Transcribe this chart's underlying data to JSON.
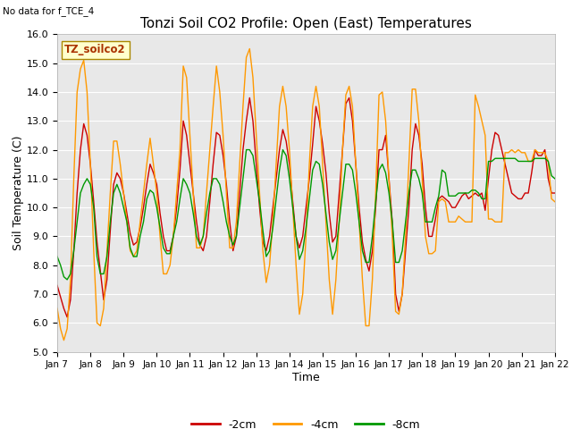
{
  "title": "Tonzi Soil CO2 Profile: Open (East) Temperatures",
  "xlabel": "Time",
  "ylabel": "Soil Temperature (C)",
  "note": "No data for f_TCE_4",
  "legend_label": "TZ_soilco2",
  "ylim": [
    5.0,
    16.0
  ],
  "yticks": [
    5.0,
    6.0,
    7.0,
    8.0,
    9.0,
    10.0,
    11.0,
    12.0,
    13.0,
    14.0,
    15.0,
    16.0
  ],
  "line_colors": {
    "2cm": "#cc0000",
    "4cm": "#ff9900",
    "8cm": "#009900"
  },
  "bg_color": "#e8e8e8",
  "x_tick_labels": [
    "Jan 7",
    "Jan 8",
    "Jan 9",
    "Jan 10",
    "Jan 11",
    "Jan 12",
    "Jan 13",
    "Jan 14",
    "Jan 15",
    "Jan 16",
    "Jan 17",
    "Jan 18",
    "Jan 19",
    "Jan 20",
    "Jan 21",
    "Jan 22"
  ],
  "data_x": [
    7.0,
    7.1,
    7.2,
    7.3,
    7.4,
    7.5,
    7.6,
    7.7,
    7.8,
    7.9,
    8.0,
    8.1,
    8.2,
    8.3,
    8.4,
    8.5,
    8.6,
    8.7,
    8.8,
    8.9,
    9.0,
    9.1,
    9.2,
    9.3,
    9.4,
    9.5,
    9.6,
    9.7,
    9.8,
    9.9,
    10.0,
    10.1,
    10.2,
    10.3,
    10.4,
    10.5,
    10.6,
    10.7,
    10.8,
    10.9,
    11.0,
    11.1,
    11.2,
    11.3,
    11.4,
    11.5,
    11.6,
    11.7,
    11.8,
    11.9,
    12.0,
    12.1,
    12.2,
    12.3,
    12.4,
    12.5,
    12.6,
    12.7,
    12.8,
    12.9,
    13.0,
    13.1,
    13.2,
    13.3,
    13.4,
    13.5,
    13.6,
    13.7,
    13.8,
    13.9,
    14.0,
    14.1,
    14.2,
    14.3,
    14.4,
    14.5,
    14.6,
    14.7,
    14.8,
    14.9,
    15.0,
    15.1,
    15.2,
    15.3,
    15.4,
    15.5,
    15.6,
    15.7,
    15.8,
    15.9,
    16.0,
    16.1,
    16.2,
    16.3,
    16.4,
    16.5,
    16.6,
    16.7,
    16.8,
    16.9,
    17.0,
    17.1,
    17.2,
    17.3,
    17.4,
    17.5,
    17.6,
    17.7,
    17.8,
    17.9,
    18.0,
    18.1,
    18.2,
    18.3,
    18.4,
    18.5,
    18.6,
    18.7,
    18.8,
    18.9,
    19.0,
    19.1,
    19.2,
    19.3,
    19.4,
    19.5,
    19.6,
    19.7,
    19.8,
    19.9,
    20.0,
    20.1,
    20.2,
    20.3,
    20.4,
    20.5,
    20.6,
    20.7,
    20.8,
    20.9,
    21.0,
    21.1,
    21.2,
    21.3,
    21.4,
    21.5,
    21.6,
    21.7,
    21.8,
    21.9,
    22.0
  ],
  "data_2cm": [
    7.3,
    6.9,
    6.5,
    6.2,
    6.8,
    8.5,
    10.5,
    12.0,
    12.9,
    12.5,
    11.5,
    10.2,
    8.8,
    7.8,
    6.8,
    7.5,
    9.2,
    10.8,
    11.2,
    11.0,
    10.5,
    9.8,
    9.1,
    8.7,
    8.8,
    9.3,
    10.0,
    10.8,
    11.5,
    11.2,
    10.8,
    9.8,
    9.0,
    8.5,
    8.5,
    9.0,
    10.0,
    11.3,
    13.0,
    12.5,
    11.5,
    10.5,
    9.5,
    8.7,
    8.5,
    9.0,
    10.2,
    11.5,
    12.6,
    12.5,
    11.8,
    10.8,
    9.5,
    8.5,
    9.0,
    10.5,
    12.0,
    13.0,
    13.8,
    13.0,
    11.5,
    10.0,
    8.8,
    8.5,
    9.0,
    10.0,
    11.0,
    12.0,
    12.7,
    12.3,
    11.5,
    10.2,
    9.0,
    8.6,
    9.0,
    10.0,
    11.0,
    12.2,
    13.5,
    13.0,
    12.2,
    11.2,
    9.8,
    8.8,
    9.0,
    10.5,
    12.0,
    13.6,
    13.8,
    13.0,
    11.5,
    10.0,
    8.8,
    8.2,
    7.8,
    8.5,
    10.0,
    12.0,
    12.0,
    12.5,
    11.0,
    9.5,
    7.0,
    6.4,
    7.0,
    8.5,
    10.0,
    12.0,
    12.9,
    12.5,
    11.5,
    10.0,
    9.0,
    9.0,
    9.6,
    10.3,
    10.4,
    10.3,
    10.2,
    10.0,
    10.0,
    10.2,
    10.4,
    10.5,
    10.3,
    10.4,
    10.5,
    10.4,
    10.5,
    9.9,
    11.0,
    12.0,
    12.6,
    12.5,
    12.0,
    11.5,
    11.0,
    10.5,
    10.4,
    10.3,
    10.3,
    10.5,
    10.5,
    11.2,
    12.0,
    11.8,
    11.8,
    12.0,
    11.0,
    10.5,
    10.5
  ],
  "data_4cm": [
    6.5,
    5.8,
    5.4,
    5.8,
    7.5,
    11.0,
    14.0,
    14.8,
    15.1,
    14.0,
    11.5,
    8.5,
    6.0,
    5.9,
    6.5,
    8.5,
    10.5,
    12.3,
    12.3,
    11.5,
    10.5,
    9.5,
    8.5,
    8.3,
    8.5,
    9.5,
    10.5,
    11.5,
    12.4,
    11.5,
    10.5,
    9.0,
    7.7,
    7.7,
    8.0,
    9.0,
    10.5,
    12.0,
    14.9,
    14.5,
    12.5,
    10.5,
    8.6,
    8.6,
    9.0,
    10.5,
    12.0,
    13.5,
    14.9,
    14.0,
    12.5,
    10.5,
    8.6,
    8.6,
    9.5,
    11.5,
    13.5,
    15.2,
    15.5,
    14.5,
    12.5,
    10.5,
    8.5,
    7.4,
    8.0,
    9.5,
    11.5,
    13.5,
    14.2,
    13.5,
    12.0,
    10.0,
    8.0,
    6.3,
    7.0,
    9.0,
    11.5,
    13.5,
    14.2,
    13.5,
    11.5,
    9.5,
    7.5,
    6.3,
    7.5,
    9.5,
    12.0,
    13.9,
    14.2,
    13.5,
    11.5,
    9.5,
    7.5,
    5.9,
    5.9,
    7.5,
    10.5,
    13.9,
    14.0,
    13.0,
    11.0,
    9.0,
    6.4,
    6.3,
    7.0,
    9.0,
    11.5,
    14.1,
    14.1,
    13.0,
    11.0,
    9.0,
    8.4,
    8.4,
    8.5,
    10.2,
    10.3,
    10.2,
    9.5,
    9.5,
    9.5,
    9.7,
    9.6,
    9.5,
    9.5,
    9.5,
    13.9,
    13.5,
    13.0,
    12.5,
    9.6,
    9.6,
    9.5,
    9.5,
    9.5,
    11.9,
    11.9,
    12.0,
    11.9,
    12.0,
    11.9,
    11.9,
    11.6,
    11.6,
    12.0,
    11.9,
    11.9,
    11.9,
    11.6,
    10.3,
    10.2
  ],
  "data_8cm": [
    8.3,
    8.0,
    7.6,
    7.5,
    7.7,
    8.5,
    9.5,
    10.5,
    10.8,
    11.0,
    10.8,
    10.0,
    8.3,
    7.7,
    7.7,
    8.3,
    9.5,
    10.5,
    10.8,
    10.5,
    10.0,
    9.5,
    8.6,
    8.3,
    8.3,
    9.0,
    9.5,
    10.3,
    10.6,
    10.5,
    10.0,
    9.3,
    8.6,
    8.4,
    8.4,
    9.0,
    9.5,
    10.3,
    11.0,
    10.8,
    10.5,
    9.8,
    9.0,
    8.7,
    9.0,
    9.8,
    10.5,
    11.0,
    11.0,
    10.8,
    10.2,
    9.5,
    9.0,
    8.7,
    9.0,
    10.0,
    11.0,
    12.0,
    12.0,
    11.8,
    11.0,
    10.2,
    9.2,
    8.3,
    8.5,
    9.3,
    10.3,
    11.3,
    12.0,
    11.8,
    11.0,
    10.0,
    9.0,
    8.2,
    8.5,
    9.3,
    10.3,
    11.3,
    11.6,
    11.5,
    10.8,
    9.8,
    8.8,
    8.2,
    8.5,
    9.5,
    10.5,
    11.5,
    11.5,
    11.3,
    10.5,
    9.5,
    8.5,
    8.1,
    8.1,
    9.0,
    10.2,
    11.3,
    11.5,
    11.2,
    10.5,
    9.5,
    8.1,
    8.1,
    8.5,
    9.5,
    10.5,
    11.3,
    11.3,
    11.0,
    10.5,
    9.5,
    9.5,
    9.5,
    10.0,
    10.4,
    11.3,
    11.2,
    10.4,
    10.4,
    10.4,
    10.5,
    10.5,
    10.5,
    10.5,
    10.6,
    10.6,
    10.5,
    10.3,
    10.3,
    11.6,
    11.6,
    11.7,
    11.7,
    11.7,
    11.7,
    11.7,
    11.7,
    11.7,
    11.6,
    11.6,
    11.6,
    11.6,
    11.6,
    11.7,
    11.7,
    11.7,
    11.7,
    11.6,
    11.1,
    11.0
  ]
}
